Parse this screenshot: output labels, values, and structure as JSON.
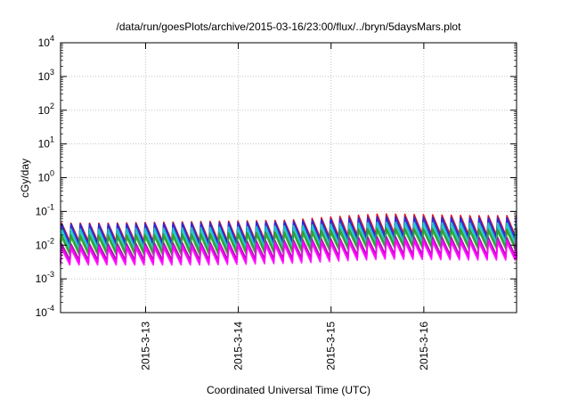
{
  "chart_data": {
    "type": "line",
    "title": "/data/run/goesPlots/archive/2015-03-16/23:00/flux/../bryn/5daysMars.plot",
    "xlabel": "Coordinated Universal Time (UTC)",
    "ylabel": "cGy/day",
    "yscale": "log",
    "ylim": [
      0.0001,
      10000
    ],
    "xlim": [
      "2015-03-12 02:00",
      "2015-03-17 00:00"
    ],
    "grid": true,
    "legend": "none",
    "x_ticks": [
      "2015-3-13",
      "2015-3-14",
      "2015-3-15",
      "2015-3-16"
    ],
    "y_ticks": [
      {
        "base": "10",
        "exp": "-4"
      },
      {
        "base": "10",
        "exp": "-3"
      },
      {
        "base": "10",
        "exp": "-2"
      },
      {
        "base": "10",
        "exp": "-1"
      },
      {
        "base": "10",
        "exp": "0"
      },
      {
        "base": "10",
        "exp": "1"
      },
      {
        "base": "10",
        "exp": "2"
      },
      {
        "base": "10",
        "exp": "3"
      },
      {
        "base": "10",
        "exp": "4"
      }
    ],
    "cycle_hours": 2.4,
    "series": [
      {
        "color": "#e41a1c",
        "peak": [
          0.045,
          0.05,
          0.055,
          0.085,
          0.075
        ],
        "trough": [
          0.013,
          0.013,
          0.015,
          0.022,
          0.02
        ]
      },
      {
        "color": "#2b2bd8",
        "peak": [
          0.042,
          0.046,
          0.05,
          0.07,
          0.065
        ],
        "trough": [
          0.011,
          0.011,
          0.013,
          0.018,
          0.017
        ]
      },
      {
        "color": "#1fc7c7",
        "peak": [
          0.03,
          0.033,
          0.037,
          0.048,
          0.045
        ],
        "trough": [
          0.008,
          0.008,
          0.009,
          0.013,
          0.012
        ]
      },
      {
        "color": "#2ca02c",
        "peak": [
          0.02,
          0.022,
          0.025,
          0.032,
          0.03
        ],
        "trough": [
          0.006,
          0.006,
          0.007,
          0.01,
          0.009
        ]
      },
      {
        "color": "#9b1f9b",
        "peak": [
          0.011,
          0.012,
          0.014,
          0.018,
          0.017
        ],
        "trough": [
          0.0037,
          0.0037,
          0.0042,
          0.0055,
          0.005
        ]
      },
      {
        "color": "#ff00ff",
        "peak": [
          0.009,
          0.01,
          0.012,
          0.015,
          0.014
        ],
        "trough": [
          0.003,
          0.003,
          0.0034,
          0.0045,
          0.0042
        ]
      }
    ]
  }
}
